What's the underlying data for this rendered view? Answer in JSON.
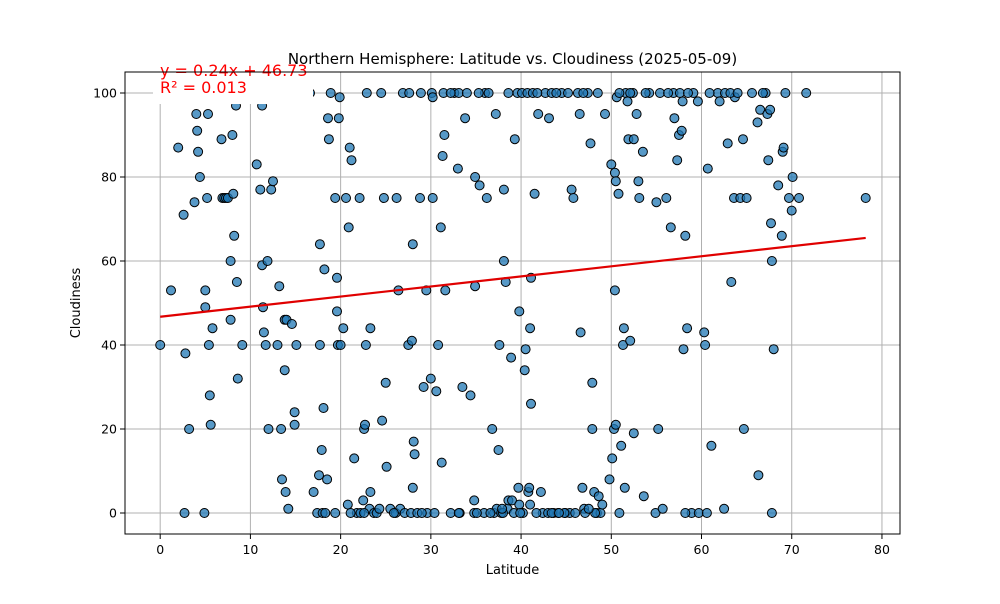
{
  "chart_data": {
    "type": "scatter",
    "title": "Northern Hemisphere: Latitude vs. Cloudiness (2025-05-09)",
    "xlabel": "Latitude",
    "ylabel": "Cloudiness",
    "xlim": [
      -3.9,
      82.0
    ],
    "ylim": [
      -5,
      105
    ],
    "xticks": [
      0,
      10,
      20,
      30,
      40,
      50,
      60,
      70,
      80
    ],
    "yticks": [
      0,
      20,
      40,
      60,
      80,
      100
    ],
    "xtick_labels": [
      "0",
      "10",
      "20",
      "30",
      "40",
      "50",
      "60",
      "70",
      "80"
    ],
    "ytick_labels": [
      "0",
      "20",
      "40",
      "60",
      "80",
      "100"
    ],
    "grid": true,
    "regression": {
      "slope": 0.24,
      "intercept": 46.73,
      "x_range": [
        0,
        78.2
      ],
      "equation_label": "y = 0.24x + 46.73",
      "r2_label": "R² = 0.013"
    },
    "colors": {
      "point_fill": "#1f77b4",
      "point_edge": "#000000",
      "line": "#e00000",
      "annotation": "#ff0000",
      "grid": "#b0b0b0"
    },
    "points": [
      [
        0.0,
        40
      ],
      [
        1.2,
        53
      ],
      [
        2.0,
        87
      ],
      [
        2.6,
        71
      ],
      [
        2.8,
        38
      ],
      [
        3.2,
        20
      ],
      [
        3.8,
        74
      ],
      [
        4.0,
        95
      ],
      [
        4.1,
        91
      ],
      [
        4.2,
        86
      ],
      [
        4.4,
        80
      ],
      [
        4.9,
        0
      ],
      [
        5.0,
        53
      ],
      [
        5.0,
        49
      ],
      [
        5.2,
        75
      ],
      [
        5.3,
        95
      ],
      [
        5.4,
        40
      ],
      [
        5.5,
        28
      ],
      [
        5.6,
        21
      ],
      [
        5.8,
        44
      ],
      [
        6.8,
        89
      ],
      [
        6.9,
        75
      ],
      [
        7.1,
        75
      ],
      [
        7.3,
        75
      ],
      [
        7.5,
        75
      ],
      [
        7.8,
        60
      ],
      [
        7.8,
        46
      ],
      [
        8.0,
        90
      ],
      [
        8.1,
        76
      ],
      [
        8.2,
        66
      ],
      [
        8.4,
        97
      ],
      [
        8.5,
        55
      ],
      [
        8.6,
        32
      ],
      [
        9.1,
        40
      ],
      [
        2.7,
        0
      ],
      [
        10.7,
        83
      ],
      [
        11.1,
        77
      ],
      [
        11.3,
        97
      ],
      [
        11.3,
        59
      ],
      [
        11.4,
        49
      ],
      [
        11.5,
        43
      ],
      [
        11.7,
        40
      ],
      [
        11.9,
        60
      ],
      [
        12.0,
        20
      ],
      [
        12.3,
        77
      ],
      [
        12.5,
        79
      ],
      [
        13.0,
        40
      ],
      [
        13.2,
        54
      ],
      [
        13.4,
        20
      ],
      [
        13.5,
        8
      ],
      [
        13.8,
        34
      ],
      [
        13.8,
        46
      ],
      [
        13.9,
        5
      ],
      [
        14.0,
        46
      ],
      [
        14.2,
        1
      ],
      [
        14.6,
        45
      ],
      [
        14.9,
        24
      ],
      [
        14.9,
        21
      ],
      [
        15.1,
        40
      ],
      [
        17.0,
        5
      ],
      [
        17.4,
        0
      ],
      [
        17.6,
        9
      ],
      [
        17.7,
        40
      ],
      [
        17.7,
        64
      ],
      [
        17.9,
        15
      ],
      [
        18.0,
        0
      ],
      [
        18.1,
        25
      ],
      [
        18.2,
        58
      ],
      [
        18.3,
        0
      ],
      [
        18.5,
        8
      ],
      [
        18.6,
        94
      ],
      [
        18.7,
        89
      ],
      [
        19.4,
        75
      ],
      [
        19.6,
        48
      ],
      [
        19.6,
        56
      ],
      [
        19.7,
        40
      ],
      [
        19.8,
        94
      ],
      [
        19.9,
        99
      ],
      [
        20.0,
        40
      ],
      [
        20.3,
        44
      ],
      [
        20.6,
        75
      ],
      [
        20.8,
        2
      ],
      [
        20.9,
        68
      ],
      [
        21.0,
        87
      ],
      [
        21.2,
        84
      ],
      [
        21.5,
        13
      ],
      [
        21.8,
        0
      ],
      [
        22.1,
        75
      ],
      [
        22.2,
        0
      ],
      [
        22.5,
        3
      ],
      [
        22.6,
        20
      ],
      [
        22.7,
        21
      ],
      [
        22.8,
        40
      ],
      [
        22.9,
        100
      ],
      [
        23.2,
        1
      ],
      [
        23.3,
        44
      ],
      [
        23.3,
        5
      ],
      [
        23.7,
        0
      ],
      [
        24.0,
        0
      ],
      [
        24.3,
        1
      ],
      [
        24.5,
        100
      ],
      [
        24.6,
        22
      ],
      [
        24.8,
        75
      ],
      [
        25.0,
        31
      ],
      [
        25.1,
        11
      ],
      [
        25.5,
        1
      ],
      [
        26.1,
        0
      ],
      [
        26.2,
        75
      ],
      [
        26.4,
        53
      ],
      [
        26.6,
        1
      ],
      [
        27.1,
        0
      ],
      [
        27.5,
        40
      ],
      [
        27.8,
        0
      ],
      [
        27.9,
        41
      ],
      [
        28.0,
        64
      ],
      [
        28.0,
        6
      ],
      [
        28.1,
        17
      ],
      [
        28.2,
        14
      ],
      [
        28.5,
        0
      ],
      [
        28.8,
        75
      ],
      [
        28.9,
        100
      ],
      [
        29.2,
        30
      ],
      [
        29.5,
        53
      ],
      [
        29.6,
        0
      ],
      [
        30.0,
        32
      ],
      [
        30.1,
        100
      ],
      [
        30.2,
        75
      ],
      [
        30.2,
        99
      ],
      [
        30.4,
        0
      ],
      [
        30.6,
        29
      ],
      [
        30.8,
        40
      ],
      [
        31.1,
        68
      ],
      [
        31.2,
        12
      ],
      [
        31.3,
        85
      ],
      [
        31.4,
        100
      ],
      [
        31.5,
        90
      ],
      [
        31.6,
        53
      ],
      [
        32.2,
        0
      ],
      [
        32.6,
        100
      ],
      [
        33.0,
        82
      ],
      [
        33.1,
        100
      ],
      [
        33.2,
        0
      ],
      [
        33.5,
        30
      ],
      [
        33.8,
        94
      ],
      [
        34.0,
        100
      ],
      [
        34.4,
        28
      ],
      [
        34.8,
        0
      ],
      [
        34.8,
        3
      ],
      [
        34.9,
        54
      ],
      [
        34.9,
        80
      ],
      [
        35.4,
        78
      ],
      [
        35.9,
        0
      ],
      [
        36.0,
        100
      ],
      [
        36.2,
        75
      ],
      [
        36.4,
        100
      ],
      [
        36.8,
        20
      ],
      [
        37.0,
        0
      ],
      [
        37.2,
        95
      ],
      [
        37.3,
        1
      ],
      [
        37.5,
        15
      ],
      [
        37.6,
        40
      ],
      [
        37.8,
        0
      ],
      [
        38.1,
        77
      ],
      [
        38.1,
        60
      ],
      [
        38.3,
        55
      ],
      [
        38.5,
        1
      ],
      [
        38.6,
        3
      ],
      [
        38.9,
        37
      ],
      [
        39.0,
        3
      ],
      [
        39.2,
        0
      ],
      [
        39.3,
        89
      ],
      [
        39.6,
        100
      ],
      [
        39.7,
        6
      ],
      [
        39.8,
        2
      ],
      [
        39.8,
        48
      ],
      [
        40.2,
        0
      ],
      [
        40.4,
        34
      ],
      [
        40.5,
        39
      ],
      [
        40.8,
        5
      ],
      [
        40.9,
        6
      ],
      [
        41.0,
        44
      ],
      [
        41.1,
        26
      ],
      [
        41.1,
        56
      ],
      [
        41.5,
        76
      ],
      [
        41.9,
        95
      ],
      [
        42.2,
        5
      ],
      [
        42.4,
        0
      ],
      [
        42.7,
        100
      ],
      [
        43.0,
        0
      ],
      [
        43.1,
        94
      ],
      [
        43.4,
        100
      ],
      [
        43.6,
        0
      ],
      [
        44.1,
        0
      ],
      [
        44.5,
        100
      ],
      [
        44.9,
        0
      ],
      [
        45.4,
        0
      ],
      [
        45.6,
        77
      ],
      [
        45.8,
        75
      ],
      [
        46.0,
        0
      ],
      [
        46.3,
        100
      ],
      [
        46.5,
        95
      ],
      [
        46.6,
        43
      ],
      [
        46.8,
        6
      ],
      [
        47.0,
        1
      ],
      [
        47.1,
        0
      ],
      [
        47.4,
        100
      ],
      [
        47.7,
        88
      ],
      [
        47.9,
        20
      ],
      [
        47.9,
        31
      ],
      [
        48.1,
        5
      ],
      [
        48.4,
        0
      ],
      [
        48.6,
        4
      ],
      [
        48.8,
        0
      ],
      [
        49.0,
        2
      ],
      [
        49.3,
        95
      ],
      [
        49.8,
        8
      ],
      [
        50.0,
        83
      ],
      [
        50.1,
        13
      ],
      [
        50.3,
        20
      ],
      [
        50.4,
        53
      ],
      [
        50.4,
        81
      ],
      [
        50.5,
        79
      ],
      [
        50.5,
        21
      ],
      [
        50.6,
        99
      ],
      [
        50.8,
        76
      ],
      [
        51.1,
        16
      ],
      [
        51.3,
        40
      ],
      [
        51.4,
        44
      ],
      [
        51.5,
        6
      ],
      [
        51.6,
        100
      ],
      [
        51.8,
        98
      ],
      [
        51.9,
        89
      ],
      [
        52.1,
        41
      ],
      [
        52.4,
        100
      ],
      [
        52.5,
        19
      ],
      [
        52.5,
        89
      ],
      [
        52.8,
        95
      ],
      [
        53.0,
        79
      ],
      [
        53.1,
        75
      ],
      [
        53.5,
        86
      ],
      [
        53.6,
        4
      ],
      [
        54.2,
        100
      ],
      [
        54.9,
        0
      ],
      [
        55.0,
        74
      ],
      [
        55.2,
        20
      ],
      [
        55.7,
        1
      ],
      [
        56.1,
        75
      ],
      [
        56.6,
        68
      ],
      [
        56.9,
        100
      ],
      [
        57.0,
        94
      ],
      [
        57.3,
        84
      ],
      [
        57.5,
        90
      ],
      [
        57.8,
        91
      ],
      [
        57.9,
        98
      ],
      [
        58.0,
        39
      ],
      [
        58.2,
        66
      ],
      [
        58.4,
        44
      ],
      [
        58.9,
        0
      ],
      [
        59.1,
        100
      ],
      [
        59.6,
        98
      ],
      [
        59.7,
        0
      ],
      [
        60.3,
        43
      ],
      [
        60.4,
        40
      ],
      [
        60.6,
        0
      ],
      [
        60.7,
        82
      ],
      [
        61.1,
        16
      ],
      [
        61.8,
        100
      ],
      [
        62.0,
        98
      ],
      [
        62.5,
        1
      ],
      [
        62.6,
        100
      ],
      [
        62.9,
        88
      ],
      [
        63.3,
        55
      ],
      [
        63.6,
        75
      ],
      [
        63.7,
        99
      ],
      [
        64.3,
        75
      ],
      [
        64.6,
        89
      ],
      [
        64.7,
        20
      ],
      [
        65.0,
        75
      ],
      [
        65.6,
        100
      ],
      [
        66.2,
        93
      ],
      [
        66.3,
        9
      ],
      [
        66.5,
        96
      ],
      [
        67.1,
        100
      ],
      [
        67.3,
        95
      ],
      [
        67.4,
        84
      ],
      [
        67.6,
        96
      ],
      [
        67.7,
        69
      ],
      [
        67.8,
        60
      ],
      [
        67.8,
        0
      ],
      [
        68.0,
        39
      ],
      [
        68.5,
        78
      ],
      [
        68.9,
        66
      ],
      [
        69.0,
        86
      ],
      [
        69.1,
        87
      ],
      [
        69.3,
        100
      ],
      [
        69.7,
        75
      ],
      [
        70.0,
        72
      ],
      [
        70.1,
        80
      ],
      [
        70.8,
        75
      ],
      [
        71.6,
        100
      ],
      [
        78.2,
        75
      ],
      [
        9.5,
        100
      ],
      [
        10.2,
        100
      ],
      [
        12.4,
        100
      ],
      [
        15.7,
        100
      ],
      [
        16.6,
        100
      ],
      [
        18.9,
        100
      ],
      [
        26.9,
        100
      ],
      [
        27.6,
        100
      ],
      [
        32.2,
        100
      ],
      [
        35.3,
        100
      ],
      [
        38.6,
        100
      ],
      [
        40.1,
        100
      ],
      [
        40.7,
        100
      ],
      [
        41.3,
        100
      ],
      [
        41.8,
        100
      ],
      [
        43.9,
        100
      ],
      [
        45.2,
        100
      ],
      [
        46.9,
        100
      ],
      [
        48.5,
        100
      ],
      [
        50.9,
        100
      ],
      [
        52.1,
        100
      ],
      [
        53.8,
        100
      ],
      [
        55.4,
        100
      ],
      [
        56.3,
        100
      ],
      [
        57.6,
        100
      ],
      [
        58.5,
        100
      ],
      [
        60.9,
        100
      ],
      [
        63.2,
        100
      ],
      [
        64.0,
        100
      ],
      [
        66.8,
        100
      ],
      [
        19.4,
        0
      ],
      [
        21.1,
        0
      ],
      [
        22.6,
        0
      ],
      [
        25.9,
        0
      ],
      [
        29.0,
        0
      ],
      [
        33.1,
        0
      ],
      [
        35.1,
        0
      ],
      [
        36.6,
        0
      ],
      [
        38.0,
        0
      ],
      [
        39.9,
        0
      ],
      [
        41.7,
        0
      ],
      [
        43.4,
        0
      ],
      [
        44.8,
        0
      ],
      [
        48.2,
        0
      ],
      [
        50.9,
        0
      ],
      [
        37.9,
        1
      ],
      [
        41.0,
        2
      ],
      [
        44.2,
        0
      ],
      [
        47.5,
        1
      ],
      [
        58.2,
        0
      ]
    ]
  }
}
